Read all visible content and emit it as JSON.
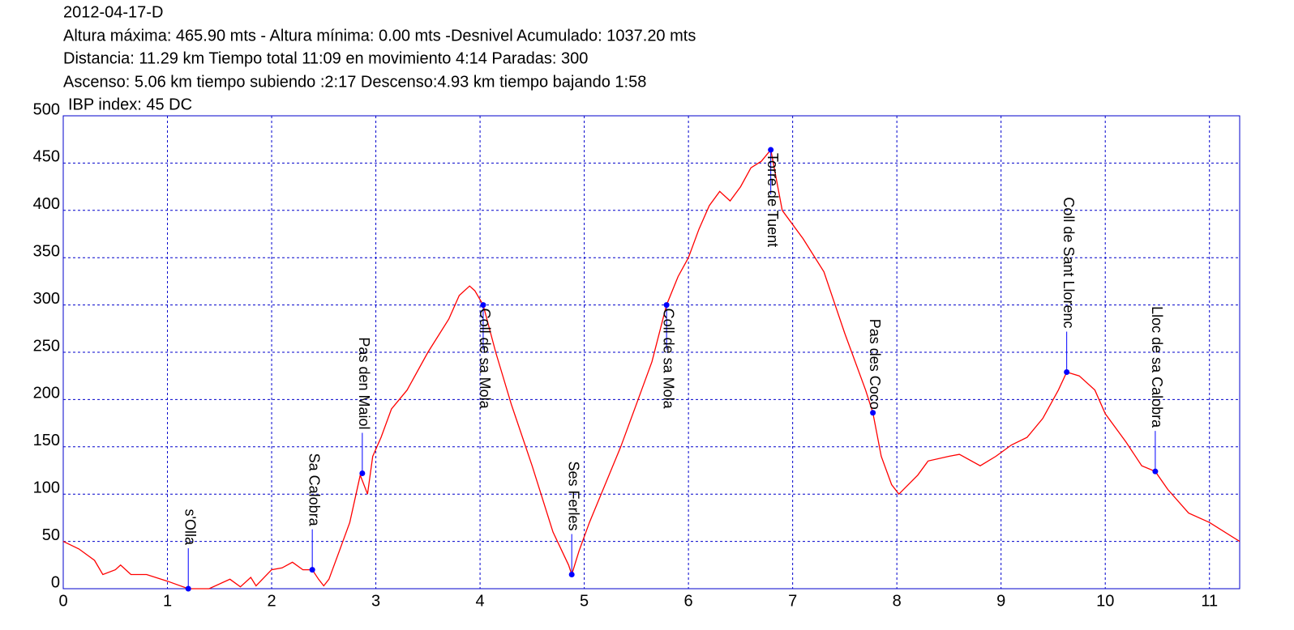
{
  "chart_data": {
    "type": "line",
    "title": "2012-04-17-D",
    "info_lines": [
      "Altura máxima: 465.90 mts - Altura mínima: 0.00 mts -Desnivel Acumulado: 1037.20 mts",
      "Distancia: 11.29 km  Tiempo total 11:09  en movimiento 4:14 Paradas: 300",
      "Ascenso: 5.06 km  tiempo subiendo :2:17  Descenso:4.93 km tiempo bajando 1:58",
      "IBP index: 45 DC"
    ],
    "xlim": [
      0,
      11.29
    ],
    "ylim": [
      0,
      500
    ],
    "xticks": [
      0,
      1,
      2,
      3,
      4,
      5,
      6,
      7,
      8,
      9,
      10,
      11
    ],
    "yticks": [
      0,
      50,
      100,
      150,
      200,
      250,
      300,
      350,
      400,
      450,
      500
    ],
    "grid": true,
    "grid_color": "#0000cc",
    "frame_color": "#0000cc",
    "series": [
      {
        "color": "#ff0000",
        "x": [
          0,
          0.15,
          0.3,
          0.38,
          0.5,
          0.55,
          0.65,
          0.8,
          1.0,
          1.2,
          1.4,
          1.6,
          1.7,
          1.8,
          1.85,
          2.0,
          2.1,
          2.2,
          2.3,
          2.39,
          2.45,
          2.5,
          2.55,
          2.65,
          2.75,
          2.85,
          2.92,
          2.97,
          3.05,
          3.15,
          3.3,
          3.5,
          3.7,
          3.8,
          3.9,
          3.95,
          4.03,
          4.15,
          4.3,
          4.5,
          4.7,
          4.85,
          4.88,
          4.95,
          5.05,
          5.2,
          5.35,
          5.5,
          5.65,
          5.79,
          5.9,
          6.0,
          6.1,
          6.2,
          6.3,
          6.4,
          6.5,
          6.6,
          6.7,
          6.79,
          6.9,
          7.1,
          7.3,
          7.5,
          7.7,
          7.77,
          7.85,
          7.95,
          8.02,
          8.2,
          8.3,
          8.5,
          8.6,
          8.8,
          8.95,
          9.1,
          9.25,
          9.4,
          9.55,
          9.63,
          9.75,
          9.9,
          10.0,
          10.2,
          10.35,
          10.48,
          10.6,
          10.8,
          11.0,
          11.29
        ],
        "values": [
          50,
          42,
          30,
          15,
          20,
          25,
          15,
          15,
          8,
          0,
          0,
          10,
          2,
          12,
          3,
          20,
          22,
          28,
          20,
          20,
          10,
          3,
          10,
          40,
          70,
          120,
          100,
          140,
          160,
          190,
          210,
          250,
          285,
          310,
          320,
          315,
          300,
          250,
          195,
          130,
          60,
          25,
          15,
          40,
          70,
          110,
          150,
          195,
          240,
          300,
          330,
          350,
          380,
          405,
          420,
          410,
          425,
          445,
          452,
          464,
          400,
          370,
          335,
          270,
          210,
          186,
          140,
          110,
          100,
          120,
          135,
          140,
          142,
          130,
          140,
          152,
          160,
          180,
          210,
          229,
          225,
          210,
          185,
          155,
          130,
          124,
          105,
          80,
          70,
          50
        ]
      }
    ],
    "waypoints": {
      "color": "#0000ff",
      "names": [
        "s'Olla",
        "Sa Calobra",
        "Pas den Maiol",
        "Coll de sa Mola",
        "Ses Ferles",
        "Coll de sa Mola",
        "Torre de Tuent",
        "Pas des Coco",
        "Coll de Sant Llorenc",
        "Lloc de sa Calobra"
      ],
      "x": [
        1.2,
        2.39,
        2.87,
        4.03,
        4.88,
        5.79,
        6.79,
        7.77,
        9.63,
        10.48
      ],
      "values": [
        0,
        20,
        122,
        300,
        15,
        300,
        464,
        186,
        229,
        124
      ]
    }
  }
}
